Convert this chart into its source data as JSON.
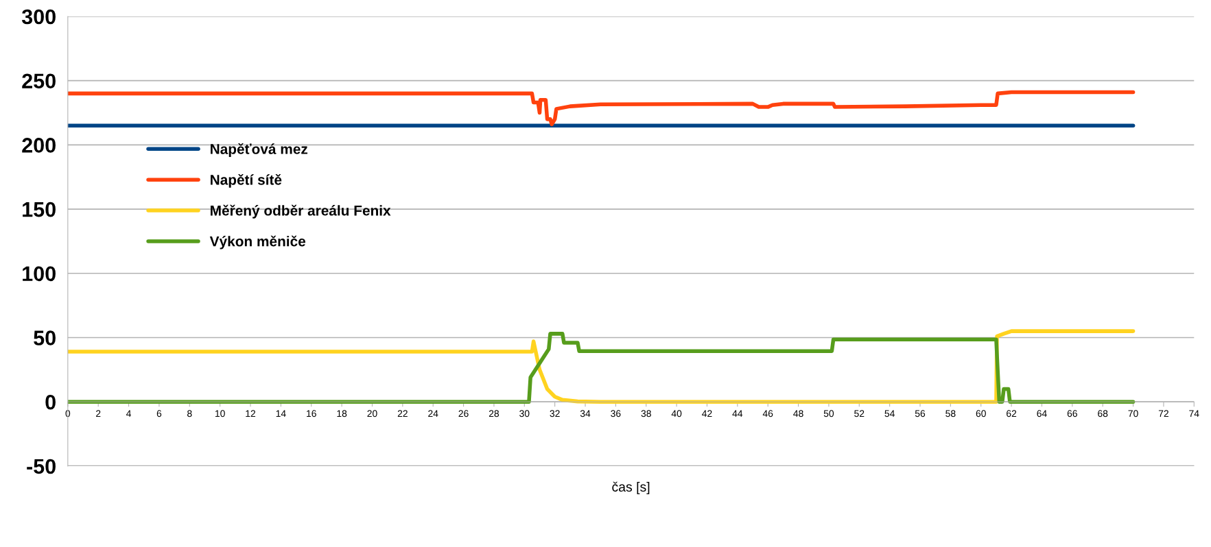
{
  "chart_data": {
    "type": "line",
    "xlabel": "čas [s]",
    "xlim": [
      0,
      74
    ],
    "xticks": [
      0,
      2,
      4,
      6,
      8,
      10,
      12,
      14,
      16,
      18,
      20,
      22,
      24,
      26,
      28,
      30,
      32,
      34,
      36,
      38,
      40,
      42,
      44,
      46,
      48,
      50,
      52,
      54,
      56,
      58,
      60,
      62,
      64,
      66,
      68,
      70,
      72,
      74
    ],
    "ylim": [
      -50,
      300
    ],
    "yticks": [
      -50,
      0,
      50,
      100,
      150,
      200,
      250,
      300
    ],
    "grid": "y",
    "legend": "left",
    "marker": "none",
    "line_style": "solid",
    "series": [
      {
        "name": "Napěťová mez",
        "color": "#004586",
        "x": [
          0,
          70
        ],
        "values": [
          215,
          215
        ]
      },
      {
        "name": "Napětí sítě",
        "color": "#ff420e",
        "x": [
          0,
          30.5,
          30.6,
          30.9,
          31.0,
          31.05,
          31.4,
          31.5,
          31.7,
          31.8,
          32.0,
          32.1,
          33,
          35,
          45,
          45.4,
          46,
          46.3,
          47,
          50.3,
          50.4,
          55,
          60,
          61,
          61.1,
          62,
          70
        ],
        "values": [
          240,
          240,
          233,
          233,
          225,
          235,
          235,
          220,
          220,
          216,
          220,
          228,
          230,
          231.5,
          232,
          229.5,
          229.5,
          231,
          232,
          232,
          229.5,
          230,
          231,
          231,
          240,
          241,
          241
        ]
      },
      {
        "name": "Měřený odběr areálu Fenix",
        "color": "#ffd320",
        "x": [
          0,
          30.5,
          30.6,
          31,
          31.5,
          32,
          32.5,
          33.5,
          35,
          61,
          61.05,
          61.5,
          62,
          70
        ],
        "values": [
          39,
          39,
          47,
          25,
          10,
          4,
          1.5,
          0.3,
          0,
          0,
          51,
          53,
          55,
          55
        ]
      },
      {
        "name": "Výkon měniče",
        "color": "#579d1c",
        "x": [
          0,
          30.3,
          30.4,
          31.6,
          31.7,
          32.5,
          32.6,
          33.5,
          33.6,
          50.2,
          50.3,
          61.0,
          61.2,
          61.4,
          61.5,
          61.8,
          61.9,
          70
        ],
        "values": [
          0,
          0,
          19,
          41,
          53,
          53,
          46,
          46,
          39.5,
          39.5,
          48.5,
          48.5,
          0,
          0,
          10,
          10,
          0,
          0
        ]
      }
    ]
  }
}
